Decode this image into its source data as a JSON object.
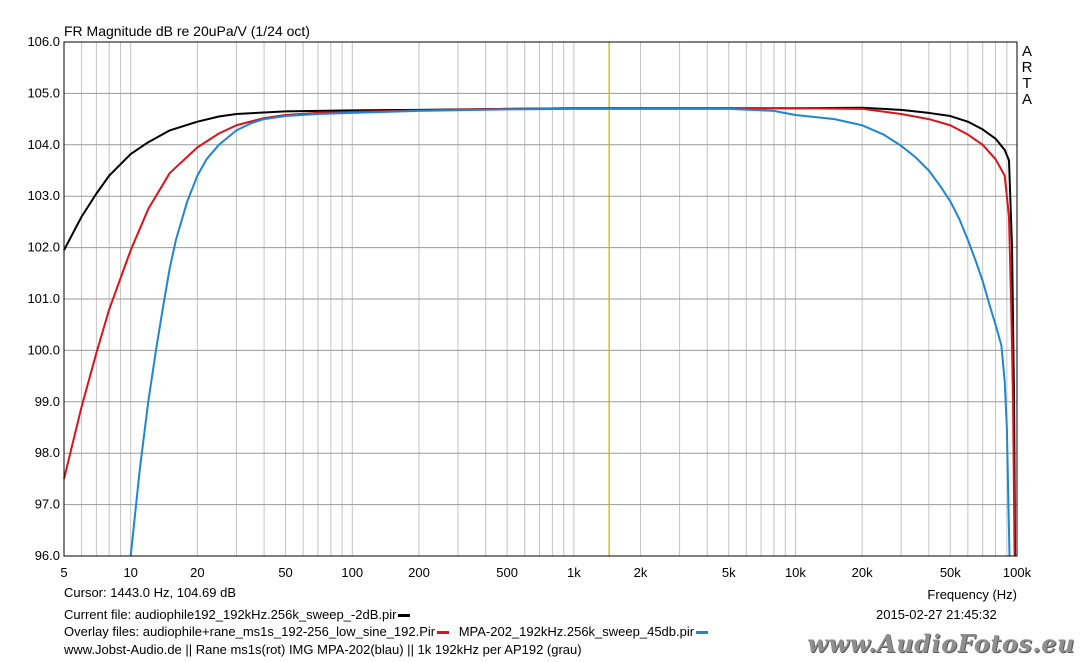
{
  "chart_data": {
    "type": "line",
    "title": "FR Magnitude dB re 20uPa/V (1/24 oct)",
    "xlabel": "Frequency (Hz)",
    "ylabel": "",
    "x_scale": "log",
    "xlim": [
      5,
      100000
    ],
    "ylim": [
      96.0,
      106.0
    ],
    "grid": true,
    "x_ticks": [
      {
        "value": 5,
        "label": "5"
      },
      {
        "value": 10,
        "label": "10"
      },
      {
        "value": 20,
        "label": "20"
      },
      {
        "value": 50,
        "label": "50"
      },
      {
        "value": 100,
        "label": "100"
      },
      {
        "value": 200,
        "label": "200"
      },
      {
        "value": 500,
        "label": "500"
      },
      {
        "value": 1000,
        "label": "1k"
      },
      {
        "value": 2000,
        "label": "2k"
      },
      {
        "value": 5000,
        "label": "5k"
      },
      {
        "value": 10000,
        "label": "10k"
      },
      {
        "value": 20000,
        "label": "20k"
      },
      {
        "value": 50000,
        "label": "50k"
      },
      {
        "value": 100000,
        "label": "100k"
      }
    ],
    "y_ticks": [
      "96.0",
      "97.0",
      "98.0",
      "99.0",
      "100.0",
      "101.0",
      "102.0",
      "103.0",
      "104.0",
      "105.0",
      "106.0"
    ],
    "cursor_frequency": 1443.0,
    "series": [
      {
        "color": "#000000",
        "points": [
          [
            5,
            101.95
          ],
          [
            6,
            102.6
          ],
          [
            7,
            103.05
          ],
          [
            8,
            103.4
          ],
          [
            10,
            103.82
          ],
          [
            12,
            104.05
          ],
          [
            15,
            104.28
          ],
          [
            20,
            104.45
          ],
          [
            25,
            104.55
          ],
          [
            30,
            104.6
          ],
          [
            50,
            104.65
          ],
          [
            100,
            104.67
          ],
          [
            200,
            104.68
          ],
          [
            500,
            104.7
          ],
          [
            1000,
            104.71
          ],
          [
            2000,
            104.71
          ],
          [
            5000,
            104.71
          ],
          [
            10000,
            104.71
          ],
          [
            20000,
            104.72
          ],
          [
            30000,
            104.68
          ],
          [
            40000,
            104.62
          ],
          [
            50000,
            104.56
          ],
          [
            60000,
            104.45
          ],
          [
            70000,
            104.3
          ],
          [
            80000,
            104.12
          ],
          [
            88000,
            103.9
          ],
          [
            92000,
            103.7
          ],
          [
            95000,
            102.0
          ],
          [
            97000,
            99.0
          ],
          [
            98000,
            96.0
          ]
        ]
      },
      {
        "color": "#d9141a",
        "points": [
          [
            5,
            97.5
          ],
          [
            6,
            98.9
          ],
          [
            7,
            99.95
          ],
          [
            8,
            100.8
          ],
          [
            10,
            101.95
          ],
          [
            12,
            102.75
          ],
          [
            15,
            103.45
          ],
          [
            20,
            103.95
          ],
          [
            25,
            104.22
          ],
          [
            30,
            104.38
          ],
          [
            40,
            104.52
          ],
          [
            50,
            104.58
          ],
          [
            70,
            104.62
          ],
          [
            100,
            104.64
          ],
          [
            200,
            104.67
          ],
          [
            500,
            104.7
          ],
          [
            1000,
            104.71
          ],
          [
            2000,
            104.71
          ],
          [
            5000,
            104.71
          ],
          [
            10000,
            104.71
          ],
          [
            20000,
            104.7
          ],
          [
            30000,
            104.6
          ],
          [
            40000,
            104.5
          ],
          [
            50000,
            104.38
          ],
          [
            60000,
            104.2
          ],
          [
            70000,
            104.0
          ],
          [
            80000,
            103.72
          ],
          [
            88000,
            103.4
          ],
          [
            92000,
            102.6
          ],
          [
            94000,
            101.0
          ],
          [
            96000,
            99.0
          ],
          [
            97500,
            96.0
          ]
        ]
      },
      {
        "color": "#1f86d1",
        "points": [
          [
            10,
            96.0
          ],
          [
            11,
            97.7
          ],
          [
            12,
            99.0
          ],
          [
            13,
            100.0
          ],
          [
            14,
            100.85
          ],
          [
            15,
            101.6
          ],
          [
            16,
            102.15
          ],
          [
            18,
            102.9
          ],
          [
            20,
            103.4
          ],
          [
            22,
            103.72
          ],
          [
            25,
            104.0
          ],
          [
            30,
            104.28
          ],
          [
            35,
            104.42
          ],
          [
            40,
            104.5
          ],
          [
            50,
            104.56
          ],
          [
            70,
            104.6
          ],
          [
            100,
            104.62
          ],
          [
            200,
            104.66
          ],
          [
            500,
            104.69
          ],
          [
            1000,
            104.7
          ],
          [
            2000,
            104.7
          ],
          [
            5000,
            104.7
          ],
          [
            8000,
            104.66
          ],
          [
            10000,
            104.58
          ],
          [
            15000,
            104.5
          ],
          [
            20000,
            104.38
          ],
          [
            25000,
            104.2
          ],
          [
            30000,
            103.98
          ],
          [
            35000,
            103.75
          ],
          [
            40000,
            103.5
          ],
          [
            45000,
            103.2
          ],
          [
            50000,
            102.9
          ],
          [
            55000,
            102.55
          ],
          [
            60000,
            102.15
          ],
          [
            65000,
            101.75
          ],
          [
            70000,
            101.35
          ],
          [
            75000,
            100.9
          ],
          [
            80000,
            100.5
          ],
          [
            85000,
            100.1
          ],
          [
            88000,
            99.4
          ],
          [
            90000,
            98.5
          ],
          [
            91500,
            97.0
          ],
          [
            92500,
            96.0
          ]
        ]
      }
    ]
  },
  "arta_label": [
    "A",
    "R",
    "T",
    "A"
  ],
  "footer": {
    "cursor": "Cursor: 1443.0 Hz, 104.69 dB",
    "current_file": "Current file: audiophile192_192kHz.256k_sweep_-2dB.pir",
    "overlay_prefix": "Overlay files: audiophile+rane_ms1s_192-256_low_sine_192.Pir",
    "overlay_second": "MPA-202_192kHz.256k_sweep_45db.pir",
    "info": "www.Jobst-Audio.de  ||  Rane ms1s(rot)  IMG MPA-202(blau)  ||  1k 192kHz per AP192 (grau)",
    "date": "2015-02-27  21:45:32",
    "watermark": "www.AudioFotos.eu",
    "colors": {
      "current": "#000000",
      "overlay1": "#d9141a",
      "overlay2": "#1f86d1",
      "cursor_line": "#c8b000"
    }
  }
}
